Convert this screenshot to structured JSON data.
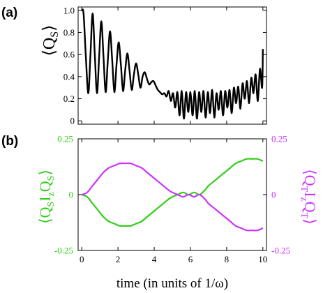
{
  "chart_data": [
    {
      "panel_label": "(a)",
      "type": "line",
      "ylabel": {
        "lang": "⟨",
        "sym": "Q",
        "sub": "S",
        "rang": "⟩"
      },
      "xlim": [
        -0.2,
        10.2
      ],
      "ylim": [
        -0.03,
        1.03
      ],
      "yticks": [
        0,
        0.2,
        0.4,
        0.6,
        0.8,
        1.0
      ],
      "ytick_labels": [
        "0",
        "0.2",
        "0.4",
        "0.6",
        "0.8",
        "1.0"
      ],
      "series": [
        {
          "color": "#000000",
          "x": [
            0.0,
            0.1,
            0.22,
            0.36,
            0.48,
            0.6,
            0.72,
            0.84,
            0.96,
            1.08,
            1.2,
            1.32,
            1.44,
            1.56,
            1.68,
            1.8,
            1.92,
            2.04,
            2.16,
            2.28,
            2.4,
            2.52,
            2.64,
            2.76,
            2.88,
            3.0,
            3.12,
            3.24,
            3.36,
            3.48,
            3.6,
            3.72,
            3.84,
            3.96,
            4.08,
            4.2,
            4.32,
            4.44,
            4.56,
            4.68,
            4.8,
            4.92,
            5.04,
            5.16,
            5.28,
            5.4,
            5.52,
            5.64,
            5.76,
            5.88,
            6.0,
            6.12,
            6.24,
            6.36,
            6.48,
            6.6,
            6.72,
            6.84,
            6.96,
            7.08,
            7.2,
            7.32,
            7.44,
            7.56,
            7.68,
            7.8,
            7.92,
            8.04,
            8.16,
            8.28,
            8.4,
            8.52,
            8.64,
            8.76,
            8.88,
            9.0,
            9.12,
            9.24,
            9.36,
            9.48,
            9.6,
            9.72,
            9.84,
            9.96,
            10.0
          ],
          "y": [
            1.0,
            0.97,
            0.6,
            0.25,
            0.6,
            0.97,
            0.6,
            0.25,
            0.58,
            0.9,
            0.58,
            0.26,
            0.55,
            0.81,
            0.55,
            0.26,
            0.51,
            0.71,
            0.51,
            0.27,
            0.46,
            0.61,
            0.45,
            0.28,
            0.42,
            0.52,
            0.42,
            0.3,
            0.4,
            0.44,
            0.38,
            0.33,
            0.35,
            0.36,
            0.32,
            0.28,
            0.26,
            0.24,
            0.25,
            0.22,
            0.27,
            0.18,
            0.25,
            0.12,
            0.26,
            0.05,
            0.27,
            0.02,
            0.26,
            0.08,
            0.26,
            0.05,
            0.27,
            0.02,
            0.26,
            0.08,
            0.27,
            0.03,
            0.26,
            0.07,
            0.28,
            0.03,
            0.25,
            0.1,
            0.27,
            0.05,
            0.27,
            0.12,
            0.28,
            0.07,
            0.3,
            0.16,
            0.31,
            0.11,
            0.34,
            0.2,
            0.36,
            0.16,
            0.39,
            0.25,
            0.42,
            0.18,
            0.47,
            0.3,
            0.65
          ]
        }
      ]
    },
    {
      "panel_label": "(b)",
      "type": "line",
      "xlabel": "time (in units of 1/ω)",
      "ylabel_left": {
        "lang": "⟨",
        "s1": "Q",
        "b1": "S",
        "s2": "I",
        "b2": "z",
        "s3": "Q",
        "b3": "S",
        "rang": "⟩",
        "color": "#33cc1a"
      },
      "ylabel_right": {
        "lang": "⟨",
        "s1": "Q",
        "b1": "T",
        "s2": "I",
        "b2": "z",
        "s3": "Q",
        "b3": "T",
        "rang": "⟩",
        "color": "#cc33ff"
      },
      "xlim": [
        -0.2,
        10.2
      ],
      "ylim": [
        -0.25,
        0.25
      ],
      "xticks": [
        0,
        2,
        4,
        6,
        8,
        10
      ],
      "xtick_labels": [
        "0",
        "2",
        "4",
        "6",
        "8",
        "10"
      ],
      "yticks": [
        -0.25,
        0,
        0.25
      ],
      "ytick_labels_left": [
        "-0.25",
        "0",
        "0.25"
      ],
      "ytick_labels_right": [
        "-0.25",
        "0",
        "0.25"
      ],
      "series": [
        {
          "color": "#33cc1a",
          "x": [
            0.0,
            0.3,
            0.6,
            0.9,
            1.2,
            1.5,
            1.8,
            2.1,
            2.4,
            2.7,
            3.0,
            3.3,
            3.6,
            3.9,
            4.2,
            4.5,
            4.8,
            5.0,
            5.3,
            5.6,
            5.9,
            6.2,
            6.5,
            6.8,
            7.0,
            7.3,
            7.6,
            7.9,
            8.2,
            8.5,
            8.8,
            9.1,
            9.4,
            9.7,
            10.0
          ],
          "y": [
            0.0,
            -0.01,
            -0.04,
            -0.07,
            -0.1,
            -0.12,
            -0.13,
            -0.14,
            -0.14,
            -0.14,
            -0.13,
            -0.12,
            -0.1,
            -0.08,
            -0.06,
            -0.04,
            -0.02,
            -0.01,
            0.0,
            0.01,
            0.0,
            0.01,
            0.0,
            0.02,
            0.04,
            0.06,
            0.08,
            0.1,
            0.12,
            0.14,
            0.15,
            0.16,
            0.16,
            0.16,
            0.15
          ]
        },
        {
          "color": "#cc33ff",
          "x": [
            0.0,
            0.3,
            0.6,
            0.9,
            1.2,
            1.5,
            1.8,
            2.1,
            2.4,
            2.7,
            3.0,
            3.3,
            3.6,
            3.9,
            4.2,
            4.5,
            4.8,
            5.0,
            5.3,
            5.6,
            5.9,
            6.2,
            6.5,
            6.8,
            7.0,
            7.3,
            7.6,
            7.9,
            8.2,
            8.5,
            8.8,
            9.1,
            9.4,
            9.7,
            10.0
          ],
          "y": [
            0.0,
            0.01,
            0.04,
            0.07,
            0.1,
            0.12,
            0.13,
            0.14,
            0.14,
            0.14,
            0.13,
            0.12,
            0.1,
            0.08,
            0.06,
            0.04,
            0.02,
            0.01,
            0.0,
            -0.01,
            0.0,
            -0.01,
            0.0,
            -0.02,
            -0.04,
            -0.06,
            -0.08,
            -0.1,
            -0.12,
            -0.14,
            -0.15,
            -0.16,
            -0.16,
            -0.16,
            -0.15
          ]
        }
      ]
    }
  ]
}
